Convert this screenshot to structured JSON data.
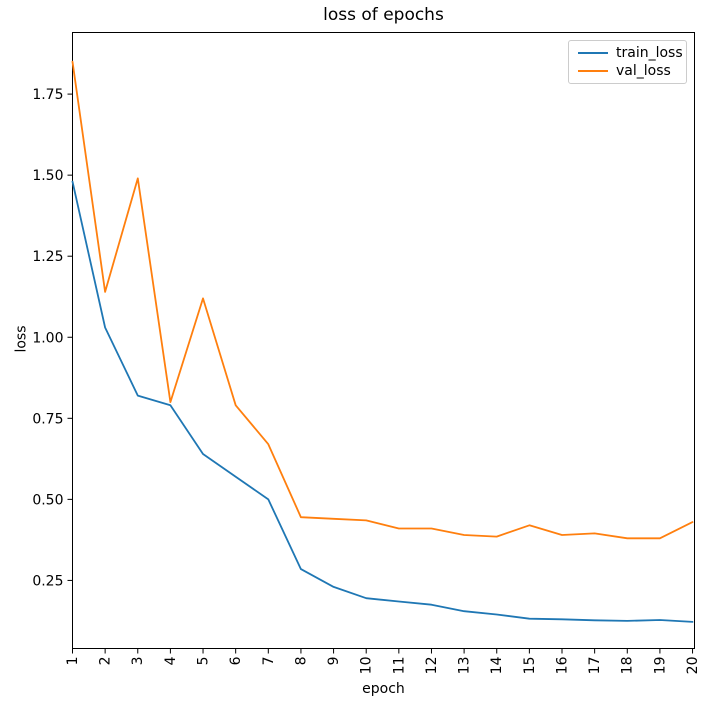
{
  "figure": {
    "background": "#ffffff"
  },
  "chart_data": {
    "type": "line",
    "title": "loss of epochs",
    "xlabel": "epoch",
    "ylabel": "loss",
    "x": [
      1,
      2,
      3,
      4,
      5,
      6,
      7,
      8,
      9,
      10,
      11,
      12,
      13,
      14,
      15,
      16,
      17,
      18,
      19,
      20
    ],
    "xtick_labels": [
      "1",
      "2",
      "3",
      "4",
      "5",
      "6",
      "7",
      "8",
      "9",
      "10",
      "11",
      "12",
      "13",
      "14",
      "15",
      "16",
      "17",
      "18",
      "19",
      "20"
    ],
    "yticks": [
      0.25,
      0.5,
      0.75,
      1.0,
      1.25,
      1.5,
      1.75
    ],
    "ytick_labels": [
      "0.25",
      "0.50",
      "0.75",
      "1.00",
      "1.25",
      "1.50",
      "1.75"
    ],
    "ylim": [
      0.04,
      1.94
    ],
    "xlim": [
      1,
      20.06
    ],
    "grid": false,
    "legend_position": "upper right",
    "series": [
      {
        "name": "train_loss",
        "color": "#1f77b4",
        "values": [
          1.48,
          1.03,
          0.82,
          0.79,
          0.64,
          0.57,
          0.5,
          0.285,
          0.23,
          0.195,
          0.185,
          0.175,
          0.155,
          0.145,
          0.132,
          0.13,
          0.127,
          0.125,
          0.128,
          0.122
        ]
      },
      {
        "name": "val_loss",
        "color": "#ff7f0e",
        "values": [
          1.85,
          1.14,
          1.49,
          0.8,
          1.12,
          0.79,
          0.67,
          0.445,
          0.44,
          0.435,
          0.41,
          0.41,
          0.39,
          0.385,
          0.42,
          0.39,
          0.395,
          0.38,
          0.38,
          0.43
        ]
      }
    ],
    "axis_color": "#000000"
  }
}
